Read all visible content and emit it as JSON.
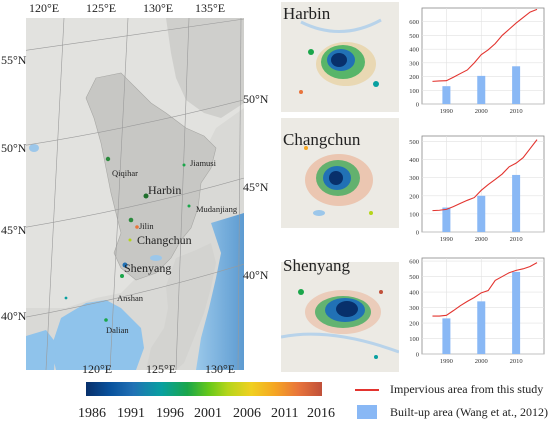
{
  "map": {
    "lon_ticks_top": [
      "120°E",
      "125°E",
      "130°E",
      "135°E"
    ],
    "lat_ticks_left": [
      "55°N",
      "50°N",
      "45°N",
      "40°N"
    ],
    "lat_ticks_right": [
      "50°N",
      "45°N",
      "40°N"
    ],
    "lon_ticks_bottom": [
      "120°E",
      "125°E",
      "130°E"
    ],
    "cities": [
      "Qiqihar",
      "Harbin",
      "Jiamusi",
      "Mudanjiang",
      "Jilin",
      "Changchun",
      "Shenyang",
      "Anshan",
      "Dalian"
    ]
  },
  "colorbar": {
    "years": [
      "1986",
      "1991",
      "1996",
      "2001",
      "2006",
      "2011",
      "2016"
    ],
    "colors": [
      "#08306b",
      "#2171b5",
      "#08a0a0",
      "#1aa64a",
      "#b5d51a",
      "#f5a623",
      "#c0503a"
    ]
  },
  "legend": {
    "line_label": "Impervious area from this study",
    "bar_label": "Built-up area (Wang et at., 2012)",
    "line_color": "#e3342f",
    "bar_color": "#89b8f5"
  },
  "chart_data": [
    {
      "type": "line",
      "title": "Harbin",
      "x_ticks": [
        "1990",
        "2000",
        "2010"
      ],
      "y_ticks": [
        "0",
        "100",
        "200",
        "300",
        "400",
        "500",
        "600"
      ],
      "ylim": [
        0,
        700
      ],
      "xlim": [
        1983,
        2018
      ],
      "line": {
        "x": [
          1986,
          1988,
          1990,
          1992,
          1994,
          1996,
          1998,
          2000,
          2002,
          2004,
          2006,
          2008,
          2010,
          2012,
          2014,
          2016
        ],
        "y": [
          165,
          168,
          170,
          195,
          222,
          248,
          300,
          360,
          395,
          440,
          500,
          545,
          590,
          630,
          670,
          690
        ]
      },
      "bars": {
        "x": [
          1990,
          2000,
          2010
        ],
        "y": [
          130,
          205,
          275
        ]
      }
    },
    {
      "type": "line",
      "title": "Changchun",
      "x_ticks": [
        "1990",
        "2000",
        "2010"
      ],
      "y_ticks": [
        "0",
        "100",
        "200",
        "300",
        "400",
        "500"
      ],
      "ylim": [
        0,
        530
      ],
      "xlim": [
        1983,
        2018
      ],
      "line": {
        "x": [
          1986,
          1988,
          1990,
          1992,
          1994,
          1996,
          1998,
          2000,
          2002,
          2004,
          2006,
          2008,
          2010,
          2012,
          2014,
          2016
        ],
        "y": [
          118,
          120,
          125,
          140,
          158,
          175,
          190,
          230,
          262,
          290,
          320,
          360,
          380,
          410,
          460,
          510
        ]
      },
      "bars": {
        "x": [
          1990,
          2000,
          2010
        ],
        "y": [
          135,
          200,
          315
        ]
      }
    },
    {
      "type": "line",
      "title": "Shenyang",
      "x_ticks": [
        "1990",
        "2000",
        "2010"
      ],
      "y_ticks": [
        "0",
        "100",
        "200",
        "300",
        "400",
        "500",
        "600"
      ],
      "ylim": [
        0,
        620
      ],
      "xlim": [
        1983,
        2018
      ],
      "line": {
        "x": [
          1986,
          1988,
          1990,
          1992,
          1994,
          1996,
          1998,
          2000,
          2002,
          2004,
          2006,
          2008,
          2010,
          2012,
          2014,
          2016
        ],
        "y": [
          245,
          245,
          250,
          280,
          312,
          340,
          365,
          395,
          410,
          475,
          500,
          525,
          540,
          550,
          565,
          590
        ]
      },
      "bars": {
        "x": [
          1990,
          2000,
          2010
        ],
        "y": [
          230,
          340,
          530
        ]
      }
    }
  ]
}
